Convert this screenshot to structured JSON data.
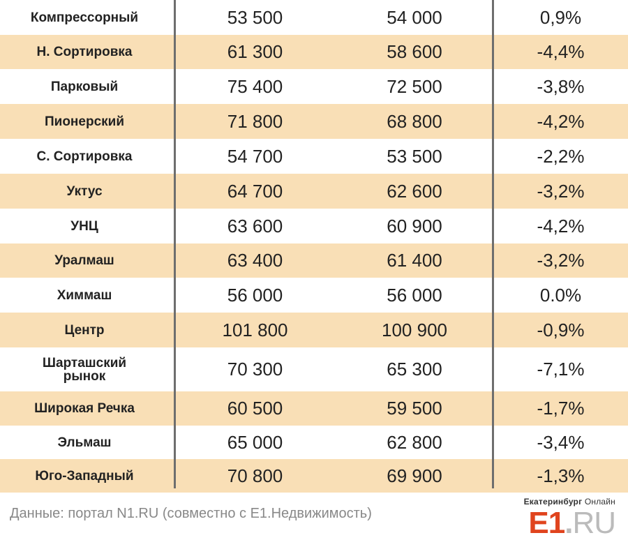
{
  "rows": [
    {
      "district": "Компрессорный",
      "v1": "53 500",
      "v2": "54 000",
      "change": "0,9%"
    },
    {
      "district": "Н. Сортировка",
      "v1": "61 300",
      "v2": "58 600",
      "change": "-4,4%"
    },
    {
      "district": "Парковый",
      "v1": "75 400",
      "v2": "72 500",
      "change": "-3,8%"
    },
    {
      "district": "Пионерский",
      "v1": "71 800",
      "v2": "68 800",
      "change": "-4,2%"
    },
    {
      "district": "С. Сортировка",
      "v1": "54 700",
      "v2": "53 500",
      "change": "-2,2%"
    },
    {
      "district": "Уктус",
      "v1": "64 700",
      "v2": "62 600",
      "change": "-3,2%"
    },
    {
      "district": "УНЦ",
      "v1": "63 600",
      "v2": "60 900",
      "change": "-4,2%"
    },
    {
      "district": "Уралмаш",
      "v1": "63 400",
      "v2": "61 400",
      "change": "-3,2%"
    },
    {
      "district": "Химмаш",
      "v1": "56 000",
      "v2": "56 000",
      "change": "0.0%"
    },
    {
      "district": "Центр",
      "v1": "101 800",
      "v2": "100 900",
      "change": "-0,9%"
    },
    {
      "district": "Шарташский рынок",
      "v1": "70 300",
      "v2": "65 300",
      "change": "-7,1%"
    },
    {
      "district": "Широкая Речка",
      "v1": "60 500",
      "v2": "59 500",
      "change": "-1,7%"
    },
    {
      "district": "Эльмаш",
      "v1": "65 000",
      "v2": "62 800",
      "change": "-3,4%"
    },
    {
      "district": "Юго-Западный",
      "v1": "70 800",
      "v2": "69 900",
      "change": "-1,3%"
    }
  ],
  "footer": {
    "source": "Данные: портал N1.RU (совместно с Е1.Недвижимость)"
  },
  "brand": {
    "city": "Екатеринбург",
    "suffix": "Онлайн",
    "logo_main": "E1",
    "logo_dot": ".",
    "logo_tld": "RU",
    "accent_color": "#e0441e"
  },
  "colors": {
    "shaded_row": "#f9dfb6",
    "divider": "#6e6e6e",
    "footer_text": "#888888"
  }
}
